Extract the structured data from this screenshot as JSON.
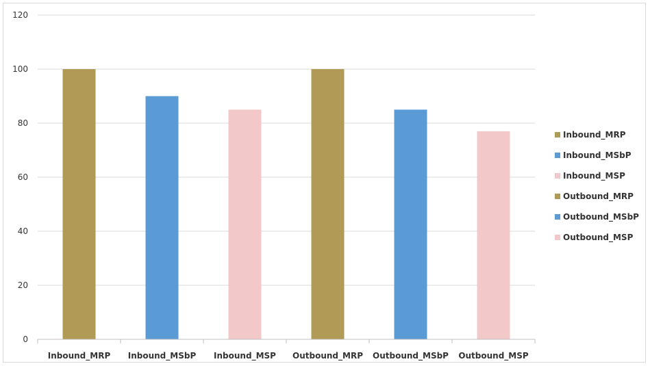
{
  "chart_data": {
    "type": "bar",
    "categories": [
      "Inbound_MRP",
      "Inbound_MSbP",
      "Inbound_MSP",
      "Outbound_MRP",
      "Outbound_MSbP",
      "Outbound_MSP"
    ],
    "values": [
      100,
      90,
      85,
      100,
      85,
      77
    ],
    "colors": [
      "#b09a56",
      "#5b9bd5",
      "#f2c9c8",
      "#b09a56",
      "#5b9bd5",
      "#f2c9c8"
    ],
    "ylim": [
      0,
      120
    ],
    "yticks": [
      "0",
      "20",
      "40",
      "60",
      "80",
      "100",
      "120"
    ],
    "grid": true,
    "legend_position": "right",
    "legend": [
      {
        "label": "Inbound_MRP",
        "color": "#b09a56"
      },
      {
        "label": "Inbound_MSbP",
        "color": "#5b9bd5"
      },
      {
        "label": "Inbound_MSP",
        "color": "#f2c9c8"
      },
      {
        "label": "Outbound_MRP",
        "color": "#b09a56"
      },
      {
        "label": "Outbound_MSbP",
        "color": "#5b9bd5"
      },
      {
        "label": "Outbound_MSP",
        "color": "#f2c9c8"
      }
    ]
  }
}
